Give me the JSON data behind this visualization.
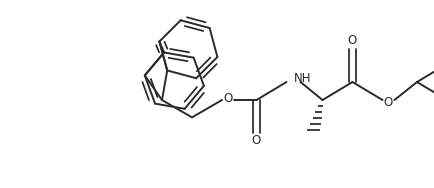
{
  "bg_color": "#ffffff",
  "line_color": "#2a2a2a",
  "line_width": 1.4,
  "figsize": [
    4.34,
    1.88
  ],
  "dpi": 100,
  "xlim": [
    0,
    434
  ],
  "ylim": [
    0,
    188
  ]
}
